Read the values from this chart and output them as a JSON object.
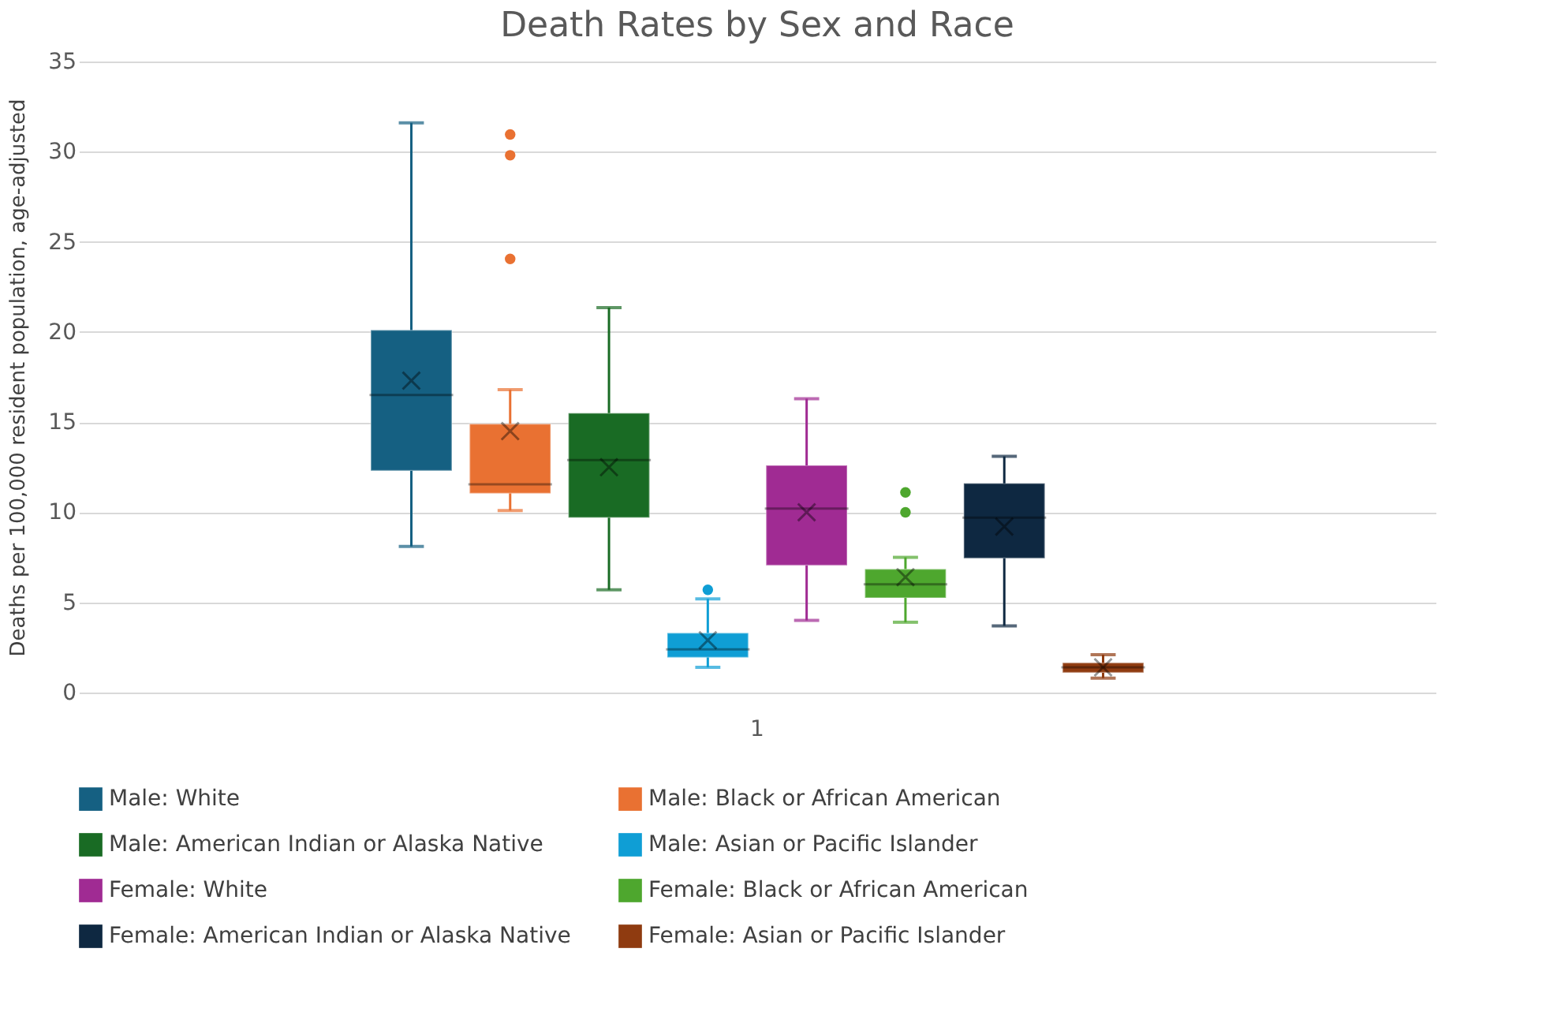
{
  "chart_data": {
    "type": "box",
    "title": "Death Rates by Sex and Race",
    "ylabel": "Deaths per 100,000 resident population, age-adjusted",
    "categories": [
      "1"
    ],
    "ylim": [
      0,
      35
    ],
    "yticks": [
      0,
      5,
      10,
      15,
      20,
      25,
      30,
      35
    ],
    "grid": "y",
    "legend": "bottom",
    "series": [
      {
        "name": "Male: White",
        "color": "#156082",
        "boxes": [
          {
            "low": 8.1,
            "q1": 12.3,
            "median": 16.5,
            "q3": 20.1,
            "high": 31.6,
            "mean": 17.3
          }
        ]
      },
      {
        "name": "Male: Black or African American",
        "color": "#e97132",
        "boxes": [
          {
            "low": 10.1,
            "q1": 11.05,
            "median": 11.55,
            "q3": 14.9,
            "high": 16.8,
            "mean": 14.5,
            "outliers": [
              30.95,
              29.8,
              24.05
            ]
          }
        ]
      },
      {
        "name": "Male: American Indian or Alaska Native",
        "color": "#196b24",
        "boxes": [
          {
            "low": 5.7,
            "q1": 9.7,
            "median": 12.9,
            "q3": 15.5,
            "high": 21.35,
            "mean": 12.5
          }
        ]
      },
      {
        "name": "Male: Asian or Pacific Islander",
        "color": "#0f9ed5",
        "boxes": [
          {
            "low": 1.4,
            "q1": 1.95,
            "median": 2.4,
            "q3": 3.3,
            "high": 5.2,
            "mean": 2.9,
            "outliers": [
              5.7
            ]
          }
        ]
      },
      {
        "name": "Female: White",
        "color": "#a02b93",
        "boxes": [
          {
            "low": 4.0,
            "q1": 7.05,
            "median": 10.2,
            "q3": 12.6,
            "high": 16.3,
            "mean": 10.0
          }
        ]
      },
      {
        "name": "Female: Black or African American",
        "color": "#4ea72e",
        "boxes": [
          {
            "low": 3.9,
            "q1": 5.25,
            "median": 6.0,
            "q3": 6.85,
            "high": 7.5,
            "mean": 6.4,
            "outliers": [
              11.1,
              10.0
            ]
          }
        ]
      },
      {
        "name": "Female: American Indian or Alaska Native",
        "color": "#0e2841",
        "boxes": [
          {
            "low": 3.7,
            "q1": 7.45,
            "median": 9.7,
            "q3": 11.6,
            "high": 13.1,
            "mean": 9.2
          }
        ]
      },
      {
        "name": "Female: Asian or Pacific Islander",
        "color": "#8f3b10",
        "boxes": [
          {
            "low": 0.8,
            "q1": 1.1,
            "median": 1.4,
            "q3": 1.65,
            "high": 2.1,
            "mean": 1.4
          }
        ]
      }
    ]
  }
}
